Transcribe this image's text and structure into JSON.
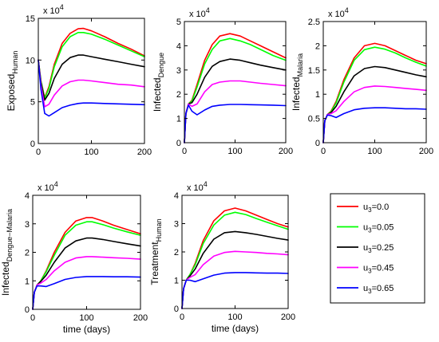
{
  "legend": {
    "entries": [
      {
        "label_prefix": "u",
        "label_sub": "3",
        "label_suffix": "=0.0",
        "color": "#ff0000"
      },
      {
        "label_prefix": "u",
        "label_sub": "3",
        "label_suffix": "=0.05",
        "color": "#00ff00"
      },
      {
        "label_prefix": "u",
        "label_sub": "3",
        "label_suffix": "=0.25",
        "color": "#000000"
      },
      {
        "label_prefix": "u",
        "label_sub": "3",
        "label_suffix": "=0.45",
        "color": "#ff00ff"
      },
      {
        "label_prefix": "u",
        "label_sub": "3",
        "label_suffix": "=0.65",
        "color": "#0000ff"
      }
    ]
  },
  "chart_data": [
    {
      "type": "line",
      "ylabel_main": "Exposed",
      "ylabel_sub": "Human",
      "xlabel": "",
      "multiplier_base": "x 10",
      "multiplier_exp": "4",
      "xlim": [
        0,
        200
      ],
      "ylim": [
        0,
        15
      ],
      "xticks": [
        0,
        100,
        200
      ],
      "xtick_labels": [
        "0",
        "100",
        "200"
      ],
      "yticks": [
        0,
        5,
        10,
        15
      ],
      "ytick_labels": [
        "0",
        "5",
        "10",
        "15"
      ],
      "series": [
        {
          "color": "#ff0000",
          "x": [
            0,
            5,
            12,
            20,
            30,
            45,
            60,
            75,
            85,
            100,
            125,
            150,
            175,
            200
          ],
          "y": [
            10,
            7.5,
            5.5,
            6.8,
            9.5,
            12,
            13.2,
            13.75,
            13.8,
            13.5,
            12.8,
            12,
            11.3,
            10.5
          ]
        },
        {
          "color": "#00ff00",
          "x": [
            0,
            5,
            12,
            20,
            30,
            45,
            60,
            75,
            85,
            100,
            125,
            150,
            175,
            200
          ],
          "y": [
            10,
            7.5,
            5.4,
            6.6,
            9.2,
            11.6,
            12.8,
            13.3,
            13.3,
            13.1,
            12.5,
            11.8,
            11.1,
            10.4
          ]
        },
        {
          "color": "#000000",
          "x": [
            0,
            5,
            12,
            20,
            30,
            45,
            60,
            75,
            85,
            100,
            125,
            150,
            175,
            200
          ],
          "y": [
            10,
            7.3,
            5.2,
            6,
            7.8,
            9.5,
            10.3,
            10.6,
            10.6,
            10.4,
            10.1,
            9.8,
            9.5,
            9.2
          ]
        },
        {
          "color": "#ff00ff",
          "x": [
            0,
            5,
            12,
            20,
            30,
            45,
            60,
            75,
            85,
            100,
            125,
            150,
            175,
            200
          ],
          "y": [
            10,
            7,
            4.4,
            4.7,
            5.8,
            6.9,
            7.4,
            7.6,
            7.6,
            7.5,
            7.3,
            7.1,
            7,
            6.8
          ]
        },
        {
          "color": "#0000ff",
          "x": [
            0,
            5,
            12,
            20,
            30,
            45,
            60,
            75,
            85,
            100,
            125,
            150,
            175,
            200
          ],
          "y": [
            10,
            6.5,
            3.6,
            3.3,
            3.7,
            4.3,
            4.6,
            4.8,
            4.85,
            4.85,
            4.8,
            4.75,
            4.7,
            4.65
          ]
        }
      ]
    },
    {
      "type": "line",
      "ylabel_main": "Infected",
      "ylabel_sub": "Dengue",
      "xlabel": "",
      "multiplier_base": "x 10",
      "multiplier_exp": "4",
      "xlim": [
        0,
        200
      ],
      "ylim": [
        0,
        5
      ],
      "xticks": [
        0,
        100,
        200
      ],
      "xtick_labels": [
        "0",
        "100",
        "200"
      ],
      "yticks": [
        0,
        1,
        2,
        3,
        4,
        5
      ],
      "ytick_labels": [
        "0",
        "1",
        "2",
        "3",
        "4",
        "5"
      ],
      "series": [
        {
          "color": "#ff0000",
          "x": [
            0,
            3,
            8,
            15,
            25,
            40,
            55,
            70,
            90,
            110,
            130,
            150,
            175,
            200
          ],
          "y": [
            0,
            1.2,
            1.6,
            1.75,
            2.4,
            3.4,
            4.05,
            4.4,
            4.5,
            4.4,
            4.2,
            4,
            3.75,
            3.5
          ]
        },
        {
          "color": "#00ff00",
          "x": [
            0,
            3,
            8,
            15,
            25,
            40,
            55,
            70,
            90,
            110,
            130,
            150,
            175,
            200
          ],
          "y": [
            0,
            1.2,
            1.6,
            1.72,
            2.3,
            3.25,
            3.85,
            4.2,
            4.3,
            4.2,
            4.05,
            3.85,
            3.6,
            3.4
          ]
        },
        {
          "color": "#000000",
          "x": [
            0,
            3,
            8,
            15,
            25,
            40,
            55,
            70,
            90,
            110,
            130,
            150,
            175,
            200
          ],
          "y": [
            0,
            1.2,
            1.6,
            1.65,
            2,
            2.7,
            3.15,
            3.35,
            3.45,
            3.4,
            3.3,
            3.2,
            3.1,
            3
          ]
        },
        {
          "color": "#ff00ff",
          "x": [
            0,
            3,
            8,
            15,
            25,
            40,
            55,
            70,
            90,
            110,
            130,
            150,
            175,
            200
          ],
          "y": [
            0,
            1.2,
            1.6,
            1.5,
            1.6,
            2.1,
            2.4,
            2.5,
            2.55,
            2.55,
            2.5,
            2.45,
            2.4,
            2.35
          ]
        },
        {
          "color": "#0000ff",
          "x": [
            0,
            3,
            8,
            15,
            25,
            40,
            55,
            70,
            90,
            110,
            130,
            150,
            175,
            200
          ],
          "y": [
            0,
            1.2,
            1.55,
            1.3,
            1.15,
            1.35,
            1.5,
            1.55,
            1.58,
            1.58,
            1.57,
            1.56,
            1.55,
            1.53
          ]
        }
      ]
    },
    {
      "type": "line",
      "ylabel_main": "Infected",
      "ylabel_sub": "Malaria",
      "xlabel": "",
      "multiplier_base": "x 10",
      "multiplier_exp": "4",
      "xlim": [
        0,
        200
      ],
      "ylim": [
        0,
        2.5
      ],
      "xticks": [
        0,
        100,
        200
      ],
      "xtick_labels": [
        "0",
        "100",
        "200"
      ],
      "yticks": [
        0,
        0.5,
        1,
        1.5,
        2,
        2.5
      ],
      "ytick_labels": [
        "0",
        "0.5",
        "1",
        "1.5",
        "2",
        "2.5"
      ],
      "series": [
        {
          "color": "#ff0000",
          "x": [
            0,
            3,
            8,
            15,
            25,
            40,
            60,
            80,
            100,
            120,
            140,
            160,
            180,
            200
          ],
          "y": [
            0,
            0.45,
            0.58,
            0.65,
            0.85,
            1.3,
            1.75,
            2,
            2.05,
            2,
            1.9,
            1.8,
            1.7,
            1.63
          ]
        },
        {
          "color": "#00ff00",
          "x": [
            0,
            3,
            8,
            15,
            25,
            40,
            60,
            80,
            100,
            120,
            140,
            160,
            180,
            200
          ],
          "y": [
            0,
            0.45,
            0.58,
            0.64,
            0.82,
            1.25,
            1.7,
            1.92,
            1.97,
            1.93,
            1.85,
            1.75,
            1.66,
            1.58
          ]
        },
        {
          "color": "#000000",
          "x": [
            0,
            3,
            8,
            15,
            25,
            40,
            60,
            80,
            100,
            120,
            140,
            160,
            180,
            200
          ],
          "y": [
            0,
            0.45,
            0.58,
            0.62,
            0.75,
            1.05,
            1.38,
            1.53,
            1.57,
            1.55,
            1.5,
            1.45,
            1.4,
            1.36
          ]
        },
        {
          "color": "#ff00ff",
          "x": [
            0,
            3,
            8,
            15,
            25,
            40,
            60,
            80,
            100,
            120,
            140,
            160,
            180,
            200
          ],
          "y": [
            0,
            0.45,
            0.58,
            0.6,
            0.66,
            0.85,
            1.05,
            1.14,
            1.17,
            1.16,
            1.14,
            1.12,
            1.1,
            1.08
          ]
        },
        {
          "color": "#0000ff",
          "x": [
            0,
            3,
            8,
            15,
            25,
            40,
            60,
            80,
            100,
            120,
            140,
            160,
            180,
            200
          ],
          "y": [
            0,
            0.45,
            0.57,
            0.56,
            0.52,
            0.6,
            0.68,
            0.71,
            0.72,
            0.72,
            0.71,
            0.7,
            0.7,
            0.69
          ]
        }
      ]
    },
    {
      "type": "line",
      "ylabel_main": "Infected",
      "ylabel_sub": "Dengue−Malaria",
      "xlabel": "time (days)",
      "multiplier_base": "x 10",
      "multiplier_exp": "4",
      "xlim": [
        0,
        200
      ],
      "ylim": [
        0,
        4
      ],
      "xticks": [
        0,
        100,
        200
      ],
      "xtick_labels": [
        "0",
        "100",
        "200"
      ],
      "yticks": [
        0,
        1,
        2,
        3,
        4
      ],
      "ytick_labels": [
        "0",
        "1",
        "2",
        "3",
        "4"
      ],
      "series": [
        {
          "color": "#ff0000",
          "x": [
            0,
            3,
            8,
            15,
            25,
            40,
            60,
            80,
            100,
            110,
            130,
            150,
            175,
            200
          ],
          "y": [
            0,
            0.6,
            0.85,
            1.0,
            1.35,
            2.0,
            2.7,
            3.1,
            3.22,
            3.22,
            3.1,
            2.95,
            2.8,
            2.65
          ]
        },
        {
          "color": "#00ff00",
          "x": [
            0,
            3,
            8,
            15,
            25,
            40,
            60,
            80,
            100,
            110,
            130,
            150,
            175,
            200
          ],
          "y": [
            0,
            0.6,
            0.85,
            1.0,
            1.32,
            1.9,
            2.6,
            2.95,
            3.07,
            3.07,
            2.97,
            2.85,
            2.72,
            2.6
          ]
        },
        {
          "color": "#000000",
          "x": [
            0,
            3,
            8,
            15,
            25,
            40,
            60,
            80,
            100,
            110,
            130,
            150,
            175,
            200
          ],
          "y": [
            0,
            0.6,
            0.85,
            0.98,
            1.2,
            1.65,
            2.15,
            2.4,
            2.5,
            2.5,
            2.45,
            2.38,
            2.3,
            2.22
          ]
        },
        {
          "color": "#ff00ff",
          "x": [
            0,
            3,
            8,
            15,
            25,
            40,
            60,
            80,
            100,
            110,
            130,
            150,
            175,
            200
          ],
          "y": [
            0,
            0.6,
            0.85,
            0.92,
            1.05,
            1.35,
            1.65,
            1.8,
            1.85,
            1.85,
            1.83,
            1.81,
            1.79,
            1.76
          ]
        },
        {
          "color": "#0000ff",
          "x": [
            0,
            3,
            8,
            15,
            25,
            40,
            60,
            80,
            100,
            110,
            130,
            150,
            175,
            200
          ],
          "y": [
            0,
            0.6,
            0.82,
            0.82,
            0.8,
            0.9,
            1.05,
            1.12,
            1.15,
            1.15,
            1.15,
            1.14,
            1.14,
            1.13
          ]
        }
      ]
    },
    {
      "type": "line",
      "ylabel_main": "Treatment",
      "ylabel_sub": "Human",
      "xlabel": "time (days)",
      "multiplier_base": "x 10",
      "multiplier_exp": "4",
      "xlim": [
        0,
        200
      ],
      "ylim": [
        0,
        4
      ],
      "xticks": [
        0,
        100,
        200
      ],
      "xtick_labels": [
        "0",
        "100",
        "200"
      ],
      "yticks": [
        0,
        1,
        2,
        3,
        4
      ],
      "ytick_labels": [
        "0",
        "1",
        "2",
        "3",
        "4"
      ],
      "series": [
        {
          "color": "#ff0000",
          "x": [
            0,
            3,
            8,
            15,
            25,
            40,
            60,
            80,
            100,
            120,
            140,
            160,
            180,
            200
          ],
          "y": [
            0,
            0.7,
            1.0,
            1.2,
            1.6,
            2.4,
            3.1,
            3.45,
            3.55,
            3.45,
            3.3,
            3.15,
            3.0,
            2.88
          ]
        },
        {
          "color": "#00ff00",
          "x": [
            0,
            3,
            8,
            15,
            25,
            40,
            60,
            80,
            100,
            120,
            140,
            160,
            180,
            200
          ],
          "y": [
            0,
            0.7,
            1.0,
            1.2,
            1.55,
            2.3,
            2.95,
            3.3,
            3.4,
            3.32,
            3.18,
            3.05,
            2.92,
            2.8
          ]
        },
        {
          "color": "#000000",
          "x": [
            0,
            3,
            8,
            15,
            25,
            40,
            60,
            80,
            100,
            120,
            140,
            160,
            180,
            200
          ],
          "y": [
            0,
            0.7,
            1.0,
            1.15,
            1.4,
            1.95,
            2.45,
            2.68,
            2.72,
            2.68,
            2.62,
            2.55,
            2.48,
            2.42
          ]
        },
        {
          "color": "#ff00ff",
          "x": [
            0,
            3,
            8,
            15,
            25,
            40,
            60,
            80,
            100,
            120,
            140,
            160,
            180,
            200
          ],
          "y": [
            0,
            0.7,
            1.0,
            1.1,
            1.2,
            1.55,
            1.85,
            1.98,
            2.02,
            2.0,
            1.98,
            1.95,
            1.93,
            1.9
          ]
        },
        {
          "color": "#0000ff",
          "x": [
            0,
            3,
            8,
            15,
            25,
            40,
            60,
            80,
            100,
            120,
            140,
            160,
            180,
            200
          ],
          "y": [
            0,
            0.7,
            1.0,
            1.0,
            0.95,
            1.05,
            1.18,
            1.25,
            1.27,
            1.27,
            1.26,
            1.25,
            1.25,
            1.24
          ]
        }
      ]
    }
  ]
}
